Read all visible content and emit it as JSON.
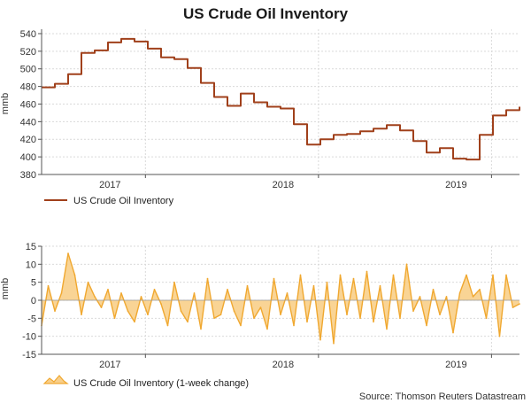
{
  "page": {
    "title": "US Crude Oil Inventory",
    "source": "Source: Thomson Reuters Datastream"
  },
  "colors": {
    "level_line": "#a0401b",
    "change_line": "#f0a830",
    "change_fill": "#f8cf8a"
  },
  "chart_data": [
    {
      "type": "line",
      "title": "US Crude Oil Inventory",
      "xlabel": "",
      "ylabel": "mmb",
      "ylim": [
        380,
        545
      ],
      "yticks": [
        380,
        400,
        420,
        440,
        460,
        480,
        500,
        520,
        540
      ],
      "xlim": [
        "2016-05-27",
        "2019-03-01"
      ],
      "x_tick_labels": [
        {
          "label": "2017",
          "date": "2017-01-01"
        },
        {
          "label": "2018",
          "date": "2018-01-01"
        },
        {
          "label": "2019",
          "date": "2019-01-01"
        }
      ],
      "grid": true,
      "legend": "bottom-left",
      "series": [
        {
          "name": "US Crude Oil Inventory",
          "x": [
            "2016-05-27",
            "2016-06-24",
            "2016-07-22",
            "2016-08-19",
            "2016-09-16",
            "2016-10-14",
            "2016-11-11",
            "2016-12-09",
            "2017-01-06",
            "2017-02-03",
            "2017-03-03",
            "2017-03-31",
            "2017-04-28",
            "2017-05-26",
            "2017-06-23",
            "2017-07-21",
            "2017-08-18",
            "2017-09-15",
            "2017-10-13",
            "2017-11-10",
            "2017-12-08",
            "2018-01-05",
            "2018-02-02",
            "2018-03-02",
            "2018-03-30",
            "2018-04-27",
            "2018-05-25",
            "2018-06-22",
            "2018-07-20",
            "2018-08-17",
            "2018-09-14",
            "2018-10-12",
            "2018-11-09",
            "2018-12-07",
            "2019-01-04",
            "2019-02-01",
            "2019-03-01"
          ],
          "values": [
            479,
            483,
            494,
            518,
            521,
            530,
            534,
            531,
            523,
            513,
            511,
            501,
            484,
            468,
            458,
            472,
            462,
            457,
            455,
            437,
            414,
            420,
            425,
            426,
            429,
            432,
            436,
            430,
            418,
            405,
            410,
            398,
            397,
            425,
            447,
            453,
            457
          ]
        }
      ]
    },
    {
      "type": "area",
      "title": "",
      "xlabel": "",
      "ylabel": "mmb",
      "ylim": [
        -15,
        15
      ],
      "yticks": [
        -15,
        -10,
        -5,
        0,
        5,
        10,
        15
      ],
      "xlim": [
        "2016-05-27",
        "2019-03-01"
      ],
      "x_tick_labels": [
        {
          "label": "2017",
          "date": "2017-01-01"
        },
        {
          "label": "2018",
          "date": "2018-01-01"
        },
        {
          "label": "2019",
          "date": "2019-01-01"
        }
      ],
      "grid": true,
      "legend": "bottom-left",
      "series": [
        {
          "name": "US Crude Oil Inventory (1-week change)",
          "x": [
            "2016-05-27",
            "2016-06-10",
            "2016-06-24",
            "2016-07-08",
            "2016-07-22",
            "2016-08-05",
            "2016-08-19",
            "2016-09-02",
            "2016-09-16",
            "2016-09-30",
            "2016-10-14",
            "2016-10-28",
            "2016-11-11",
            "2016-11-25",
            "2016-12-09",
            "2016-12-23",
            "2017-01-06",
            "2017-01-20",
            "2017-02-03",
            "2017-02-17",
            "2017-03-03",
            "2017-03-17",
            "2017-03-31",
            "2017-04-14",
            "2017-04-28",
            "2017-05-12",
            "2017-05-26",
            "2017-06-09",
            "2017-06-23",
            "2017-07-07",
            "2017-07-21",
            "2017-08-04",
            "2017-08-18",
            "2017-09-01",
            "2017-09-15",
            "2017-09-29",
            "2017-10-13",
            "2017-10-27",
            "2017-11-10",
            "2017-11-24",
            "2017-12-08",
            "2017-12-22",
            "2018-01-05",
            "2018-01-19",
            "2018-02-02",
            "2018-02-16",
            "2018-03-02",
            "2018-03-16",
            "2018-03-30",
            "2018-04-13",
            "2018-04-27",
            "2018-05-11",
            "2018-05-25",
            "2018-06-08",
            "2018-06-22",
            "2018-07-06",
            "2018-07-20",
            "2018-08-03",
            "2018-08-17",
            "2018-08-31",
            "2018-09-14",
            "2018-09-28",
            "2018-10-12",
            "2018-10-26",
            "2018-11-09",
            "2018-11-23",
            "2018-12-07",
            "2018-12-21",
            "2019-01-04",
            "2019-01-18",
            "2019-02-01",
            "2019-02-15",
            "2019-03-01"
          ],
          "values": [
            -7,
            4,
            -3,
            2,
            13,
            7,
            -4,
            5,
            1,
            -2,
            3,
            -5,
            2,
            -3,
            -6,
            1,
            -4,
            3,
            -1,
            -7,
            5,
            -3,
            -6,
            2,
            -8,
            6,
            -5,
            -4,
            3,
            -3,
            -7,
            4,
            -5,
            -2,
            -8,
            6,
            -4,
            2,
            -7,
            7,
            -6,
            4,
            -11,
            5,
            -12,
            7,
            -4,
            6,
            -5,
            8,
            -6,
            4,
            -8,
            7,
            -5,
            10,
            -3,
            1,
            -7,
            3,
            -4,
            1,
            -9,
            2,
            7,
            1,
            3,
            -5,
            7,
            -10,
            7,
            -2,
            -1
          ]
        }
      ]
    }
  ]
}
